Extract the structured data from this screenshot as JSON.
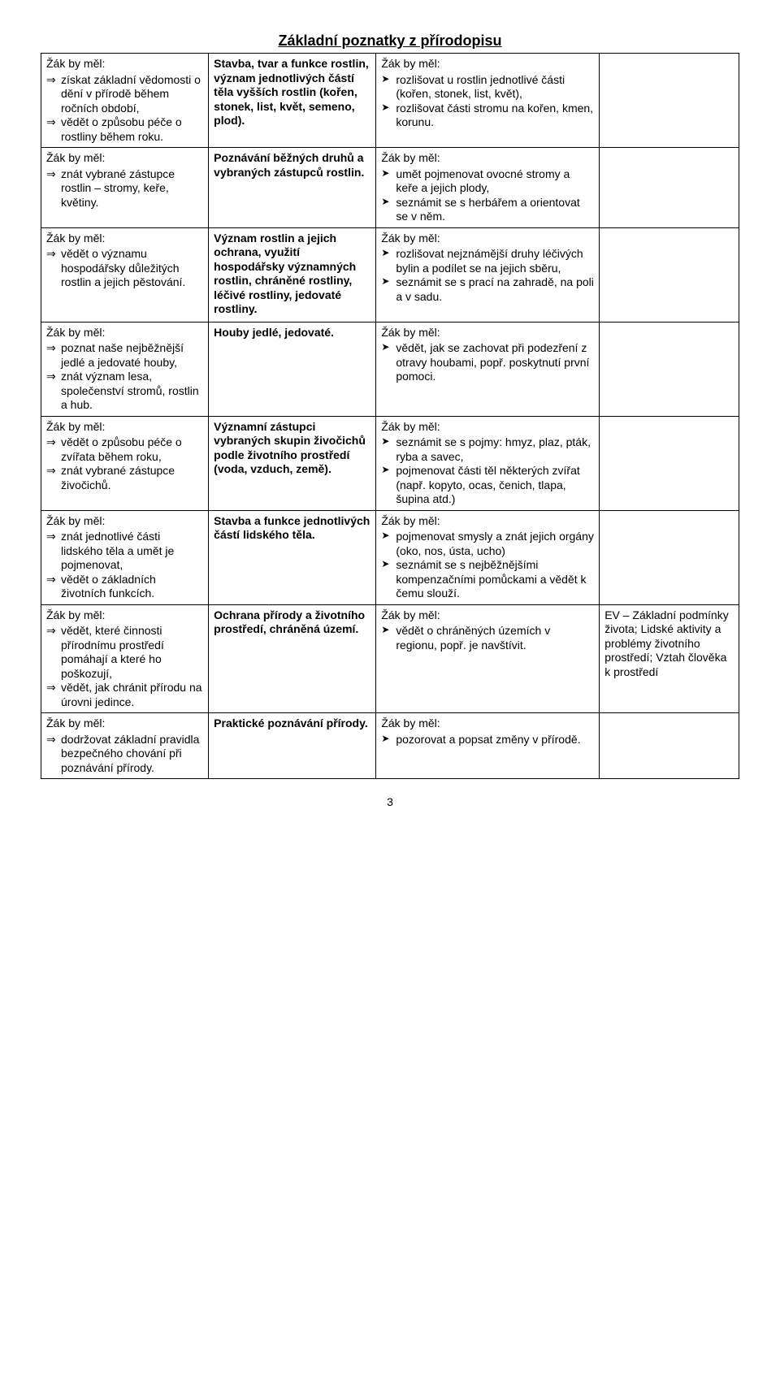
{
  "title": "Základní poznatky z přírodopisu",
  "page_number": "3",
  "colors": {
    "text": "#000000",
    "background": "#ffffff",
    "border": "#000000"
  },
  "rows": [
    {
      "left_lead": "Žák by měl:",
      "left_items": [
        "získat základní vědomosti o dění v přírodě během ročních období,",
        "vědět o způsobu péče o rostliny během roku."
      ],
      "mid": "Stavba, tvar a funkce rostlin, význam jednotlivých částí těla vyšších rostlin (kořen, stonek, list, květ, semeno, plod).",
      "right_lead": "Žák by měl:",
      "right_items": [
        "rozlišovat u rostlin jednotlivé části (kořen, stonek, list, květ),",
        "rozlišovat části stromu na kořen, kmen, korunu."
      ],
      "note": ""
    },
    {
      "left_lead": "Žák by měl:",
      "left_items": [
        "znát vybrané zástupce rostlin – stromy, keře, květiny."
      ],
      "mid": "Poznávání běžných druhů a vybraných zástupců rostlin.",
      "right_lead": "Žák by měl:",
      "right_items": [
        "umět pojmenovat ovocné stromy a keře a jejich plody,",
        "seznámit se s herbářem a orientovat se v něm."
      ],
      "note": ""
    },
    {
      "left_lead": "Žák by měl:",
      "left_items": [
        "vědět o významu hospodářsky důležitých rostlin a jejich pěstování."
      ],
      "mid": "Význam rostlin a jejich ochrana, využití hospodářsky významných rostlin, chráněné rostliny, léčivé rostliny, jedovaté rostliny.",
      "right_lead": "Žák by měl:",
      "right_items": [
        "rozlišovat nejznámější druhy léčivých bylin a podílet se na jejich sběru,",
        "seznámit se s  prací na zahradě, na poli a v sadu."
      ],
      "note": ""
    },
    {
      "left_lead": "Žák by měl:",
      "left_items": [
        "poznat naše nejběžnější jedlé a jedovaté houby,",
        "znát význam lesa, společenství stromů, rostlin a hub."
      ],
      "mid": "Houby jedlé, jedovaté.",
      "right_lead": "Žák by měl:",
      "right_items": [
        "vědět, jak se zachovat při podezření z otravy houbami, popř. poskytnutí první pomoci."
      ],
      "note": ""
    },
    {
      "left_lead": "Žák by měl:",
      "left_items": [
        "vědět o způsobu péče o zvířata během roku,",
        "znát vybrané zástupce živočichů."
      ],
      "mid": "Významní zástupci vybraných skupin živočichů podle životního prostředí (voda, vzduch, země).",
      "right_lead": "Žák by měl:",
      "right_items": [
        "seznámit se s pojmy: hmyz, plaz, pták, ryba a savec,",
        "pojmenovat části těl některých zvířat (např. kopyto, ocas, čenich, tlapa, šupina atd.)"
      ],
      "note": ""
    },
    {
      "left_lead": "Žák by měl:",
      "left_items": [
        "znát jednotlivé části lidského těla a umět je pojmenovat,",
        "vědět o základních životních funkcích."
      ],
      "mid": "Stavba a funkce jednotlivých částí lidského těla.",
      "right_lead": "Žák by měl:",
      "right_items": [
        "pojmenovat smysly a znát jejich orgány (oko, nos, ústa, ucho)",
        "seznámit se s nejběžnějšími kompenzačními pomůckami a vědět k čemu slouží."
      ],
      "note": ""
    },
    {
      "left_lead": "Žák by měl:",
      "left_items": [
        "vědět, které činnosti přírodnímu prostředí pomáhají a které ho poškozují,",
        "vědět, jak chránit přírodu na úrovni jedince."
      ],
      "mid": "Ochrana přírody a životního prostředí, chráněná území.",
      "right_lead": "Žák by měl:",
      "right_items": [
        "vědět o chráněných územích v regionu, popř. je navštívit."
      ],
      "note": "EV – Základní podmínky života; Lidské aktivity a problémy životního prostředí; Vztah člověka k prostředí"
    },
    {
      "left_lead": "Žák by měl:",
      "left_items": [
        "dodržovat základní pravidla bezpečného chování při poznávání přírody."
      ],
      "mid": "Praktické poznávání přírody.",
      "right_lead": "Žák by měl:",
      "right_items": [
        "pozorovat a popsat změny v přírodě."
      ],
      "note": ""
    }
  ]
}
